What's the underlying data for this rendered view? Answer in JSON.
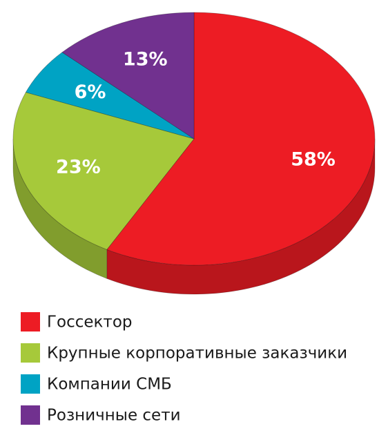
{
  "chart_data": {
    "type": "pie",
    "categories": [
      "Госсектор",
      "Крупные корпоративные заказчики",
      "Компании СМБ",
      "Розничные сети"
    ],
    "values": [
      58,
      23,
      6,
      13
    ],
    "value_labels": [
      "58%",
      "23%",
      "6%",
      "13%"
    ],
    "colors": [
      "#ed1c24",
      "#a6c93a",
      "#00a3c4",
      "#71318f"
    ],
    "legend": "bottom"
  }
}
